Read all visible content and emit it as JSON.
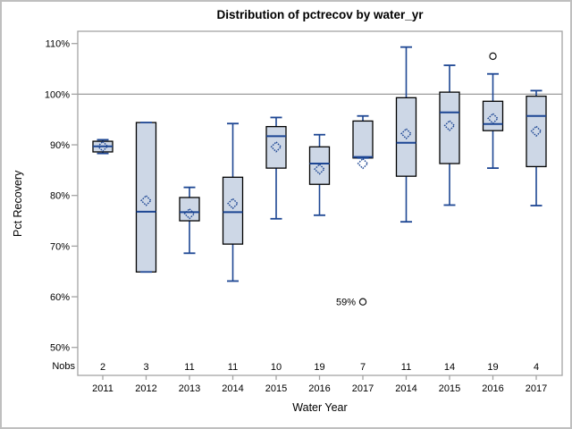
{
  "figure": {
    "title": "Distribution of pctrecov by water_yr",
    "ylabel": "Pct Recovery",
    "xlabel": "Water Year",
    "nobs_label": "Nobs"
  },
  "colors": {
    "box_fill": "#cdd7e6",
    "box_stroke": "#000000",
    "line_blue": "#1d4693",
    "frame_gray": "#a3a3a3",
    "refline_gray": "#9b9b9b",
    "outlier_stroke": "#111111",
    "text": "#000000"
  },
  "chart_data": {
    "type": "boxplot",
    "title": "Distribution of pctrecov by water_yr",
    "xlabel": "Water Year",
    "ylabel": "Pct Recovery",
    "ylim": [
      46,
      112.5
    ],
    "yticks": [
      110,
      100,
      90,
      80,
      70,
      60,
      50
    ],
    "ytick_labels": [
      "110%",
      "100%",
      "90%",
      "80%",
      "70%",
      "60%",
      "50%"
    ],
    "refline": 100,
    "grid": false,
    "legend": "none",
    "nobs_row_label": "Nobs",
    "boxes": [
      {
        "category": "2011",
        "nobs": "2",
        "whisker_low": 88.3,
        "q1": 88.6,
        "median": 89.7,
        "q3": 90.7,
        "whisker_high": 91.0,
        "mean": 89.7,
        "outliers": []
      },
      {
        "category": "2012",
        "nobs": "3",
        "whisker_low": 64.9,
        "q1": 64.9,
        "median": 76.8,
        "q3": 94.4,
        "whisker_high": 94.4,
        "mean": 79.0,
        "outliers": []
      },
      {
        "category": "2013",
        "nobs": "11",
        "whisker_low": 68.6,
        "q1": 75.0,
        "median": 76.7,
        "q3": 79.6,
        "whisker_high": 81.6,
        "mean": 76.4,
        "outliers": []
      },
      {
        "category": "2014",
        "nobs": "11",
        "whisker_low": 63.1,
        "q1": 70.4,
        "median": 76.7,
        "q3": 83.6,
        "whisker_high": 94.2,
        "mean": 78.4,
        "outliers": []
      },
      {
        "category": "2015",
        "nobs": "10",
        "whisker_low": 75.4,
        "q1": 85.4,
        "median": 91.7,
        "q3": 93.6,
        "whisker_high": 95.4,
        "mean": 89.6,
        "outliers": []
      },
      {
        "category": "2016",
        "nobs": "19",
        "whisker_low": 76.1,
        "q1": 82.2,
        "median": 86.3,
        "q3": 89.6,
        "whisker_high": 92.0,
        "mean": 85.2,
        "outliers": []
      },
      {
        "category": "2017",
        "nobs": "7",
        "whisker_low": 87.4,
        "q1": 87.4,
        "median": 87.6,
        "q3": 94.7,
        "whisker_high": 95.7,
        "mean": 86.3,
        "outliers": [
          {
            "value": 59,
            "label": "59%"
          }
        ]
      },
      {
        "category": "2014",
        "nobs": "11",
        "whisker_low": 74.8,
        "q1": 83.8,
        "median": 90.4,
        "q3": 99.3,
        "whisker_high": 109.3,
        "mean": 92.2,
        "outliers": []
      },
      {
        "category": "2015",
        "nobs": "14",
        "whisker_low": 78.1,
        "q1": 86.3,
        "median": 96.4,
        "q3": 100.4,
        "whisker_high": 105.7,
        "mean": 93.8,
        "outliers": []
      },
      {
        "category": "2016",
        "nobs": "19",
        "whisker_low": 85.4,
        "q1": 92.8,
        "median": 94.1,
        "q3": 98.6,
        "whisker_high": 104.0,
        "mean": 95.2,
        "outliers": [
          {
            "value": 107.5,
            "label": ""
          }
        ]
      },
      {
        "category": "2017",
        "nobs": "4",
        "whisker_low": 78.0,
        "q1": 85.7,
        "median": 95.7,
        "q3": 99.6,
        "whisker_high": 100.7,
        "mean": 92.7,
        "outliers": []
      }
    ]
  }
}
